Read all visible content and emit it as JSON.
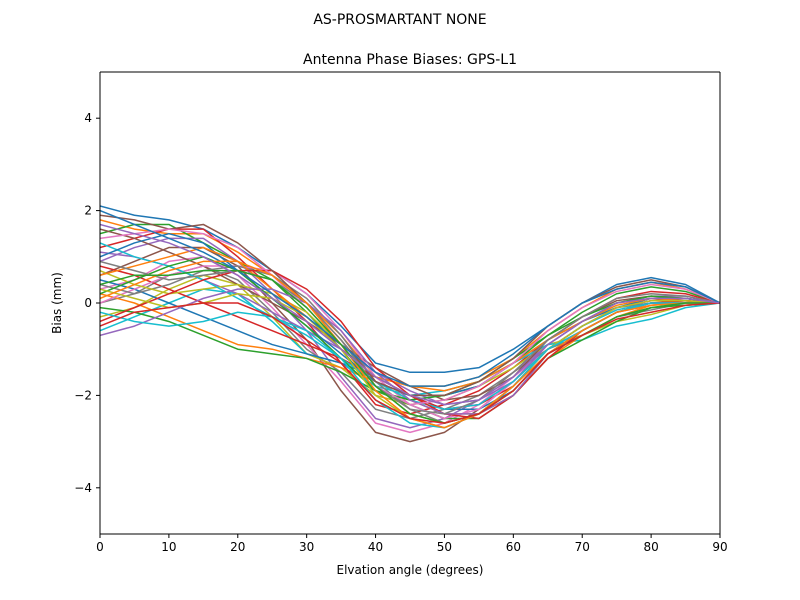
{
  "figure": {
    "suptitle": "AS-PROSMARTANT  NONE"
  },
  "chart_data": {
    "type": "line",
    "title": "Antenna Phase Biases: GPS-L1",
    "xlabel": "Elvation angle (degrees)",
    "ylabel": "Bias (mm)",
    "xlim": [
      0,
      90
    ],
    "ylim": [
      -5,
      5
    ],
    "xticks": [
      0,
      10,
      20,
      30,
      40,
      50,
      60,
      70,
      80,
      90
    ],
    "yticks": [
      -4,
      -2,
      0,
      2,
      4
    ],
    "ytick_labels": [
      "−4",
      "−2",
      "0",
      "2",
      "4"
    ],
    "grid": false,
    "legend": "none",
    "palette": [
      "#1f77b4",
      "#ff7f0e",
      "#2ca02c",
      "#d62728",
      "#9467bd",
      "#8c564b",
      "#e377c2",
      "#7f7f7f",
      "#bcbd22",
      "#17becf"
    ],
    "x": [
      0,
      5,
      10,
      15,
      20,
      25,
      30,
      35,
      40,
      45,
      50,
      55,
      60,
      65,
      70,
      75,
      80,
      85,
      90
    ],
    "series": [
      {
        "values": [
          2.1,
          1.9,
          1.8,
          1.6,
          1.2,
          0.7,
          0.2,
          -0.5,
          -1.3,
          -1.5,
          -1.5,
          -1.4,
          -1.0,
          -0.5,
          0.0,
          0.4,
          0.55,
          0.4,
          0.0
        ]
      },
      {
        "values": [
          1.8,
          1.6,
          1.5,
          1.5,
          1.1,
          0.6,
          0.0,
          -0.7,
          -1.6,
          -1.8,
          -1.8,
          -1.6,
          -1.2,
          -0.6,
          -0.1,
          0.3,
          0.45,
          0.3,
          0.0
        ]
      },
      {
        "values": [
          1.5,
          1.7,
          1.7,
          1.3,
          0.9,
          0.5,
          -0.2,
          -1.0,
          -1.9,
          -2.1,
          -2.0,
          -1.8,
          -1.3,
          -0.7,
          -0.2,
          0.2,
          0.35,
          0.25,
          0.0
        ]
      },
      {
        "values": [
          1.2,
          1.4,
          1.6,
          1.6,
          1.0,
          0.3,
          -0.4,
          -1.3,
          -2.2,
          -2.4,
          -2.2,
          -1.9,
          -1.4,
          -0.8,
          -0.3,
          0.1,
          0.25,
          0.2,
          0.0
        ]
      },
      {
        "values": [
          0.9,
          1.2,
          1.4,
          1.4,
          0.9,
          0.2,
          -0.6,
          -1.6,
          -2.5,
          -2.7,
          -2.5,
          -2.1,
          -1.5,
          -0.9,
          -0.4,
          0.0,
          0.15,
          0.15,
          0.0
        ]
      },
      {
        "values": [
          0.6,
          0.9,
          1.2,
          1.2,
          0.8,
          0.0,
          -0.8,
          -1.9,
          -2.8,
          -3.0,
          -2.8,
          -2.3,
          -1.7,
          -1.0,
          -0.5,
          -0.1,
          0.05,
          0.1,
          0.0
        ]
      },
      {
        "values": [
          0.3,
          0.5,
          0.9,
          1.0,
          0.6,
          -0.1,
          -0.9,
          -1.7,
          -2.6,
          -2.8,
          -2.6,
          -2.2,
          -1.6,
          -1.0,
          -0.6,
          -0.2,
          -0.05,
          0.05,
          0.0
        ]
      },
      {
        "values": [
          0.0,
          0.2,
          0.6,
          0.8,
          0.5,
          -0.2,
          -1.0,
          -1.5,
          -2.3,
          -2.5,
          -2.3,
          -2.0,
          -1.5,
          -1.0,
          -0.7,
          -0.3,
          -0.15,
          0.0,
          0.0
        ]
      },
      {
        "values": [
          -0.3,
          -0.1,
          0.3,
          0.6,
          0.4,
          -0.3,
          -1.1,
          -1.4,
          -2.0,
          -2.2,
          -2.1,
          -1.8,
          -1.4,
          -0.9,
          -0.7,
          -0.4,
          -0.25,
          -0.05,
          0.0
        ]
      },
      {
        "values": [
          -0.6,
          -0.3,
          0.0,
          0.3,
          0.2,
          -0.4,
          -1.1,
          -1.3,
          -1.8,
          -2.0,
          -1.9,
          -1.7,
          -1.3,
          -0.9,
          -0.8,
          -0.5,
          -0.35,
          -0.1,
          0.0
        ]
      },
      {
        "values": [
          0.5,
          0.3,
          0.0,
          -0.3,
          -0.6,
          -0.9,
          -1.1,
          -1.3,
          -1.6,
          -2.0,
          -2.3,
          -2.3,
          -1.9,
          -1.1,
          -0.6,
          -0.2,
          0.0,
          0.0,
          0.0
        ]
      },
      {
        "values": [
          0.2,
          0.0,
          -0.3,
          -0.6,
          -0.9,
          -1.0,
          -1.2,
          -1.4,
          -1.7,
          -2.1,
          -2.4,
          -2.4,
          -2.0,
          -1.2,
          -0.7,
          -0.3,
          -0.05,
          0.0,
          0.0
        ]
      },
      {
        "values": [
          -0.1,
          -0.2,
          -0.4,
          -0.7,
          -1.0,
          -1.1,
          -1.2,
          -1.5,
          -1.9,
          -2.2,
          -2.5,
          -2.5,
          -2.0,
          -1.2,
          -0.8,
          -0.4,
          -0.1,
          -0.05,
          0.0
        ]
      },
      {
        "values": [
          0.8,
          0.6,
          0.3,
          0.0,
          -0.3,
          -0.6,
          -0.9,
          -1.2,
          -1.6,
          -2.0,
          -2.3,
          -2.2,
          -1.8,
          -1.0,
          -0.5,
          -0.1,
          0.05,
          0.05,
          0.0
        ]
      },
      {
        "values": [
          1.1,
          1.0,
          0.8,
          0.5,
          0.2,
          -0.2,
          -0.6,
          -1.0,
          -1.5,
          -1.9,
          -2.2,
          -2.1,
          -1.7,
          -0.9,
          -0.4,
          0.0,
          0.1,
          0.1,
          0.0
        ]
      },
      {
        "values": [
          1.6,
          1.4,
          1.1,
          0.8,
          0.4,
          0.0,
          -0.4,
          -0.9,
          -1.4,
          -1.8,
          -2.1,
          -2.0,
          -1.6,
          -0.8,
          -0.3,
          0.05,
          0.15,
          0.1,
          0.0
        ]
      },
      {
        "values": [
          0.0,
          0.3,
          0.6,
          0.8,
          0.8,
          0.7,
          0.2,
          -0.6,
          -1.6,
          -2.2,
          -2.5,
          -2.3,
          -1.7,
          -1.0,
          -0.5,
          -0.1,
          0.05,
          0.05,
          0.0
        ]
      },
      {
        "values": [
          0.4,
          0.2,
          0.4,
          0.7,
          0.8,
          0.6,
          0.1,
          -0.7,
          -1.7,
          -2.3,
          -2.6,
          -2.4,
          -1.8,
          -1.0,
          -0.5,
          -0.1,
          0.0,
          0.0,
          0.0
        ]
      },
      {
        "values": [
          0.7,
          0.4,
          0.2,
          0.3,
          0.4,
          0.2,
          -0.2,
          -0.9,
          -1.8,
          -2.4,
          -2.6,
          -2.4,
          -1.9,
          -1.1,
          -0.6,
          -0.2,
          0.0,
          0.0,
          0.0
        ]
      },
      {
        "values": [
          1.3,
          1.0,
          0.8,
          0.5,
          0.1,
          -0.3,
          -0.7,
          -1.2,
          -1.7,
          -2.1,
          -2.3,
          -2.2,
          -1.7,
          -1.0,
          -0.5,
          -0.15,
          0.0,
          0.0,
          0.0
        ]
      },
      {
        "values": [
          1.0,
          1.3,
          1.5,
          1.3,
          0.7,
          0.1,
          -0.5,
          -1.1,
          -1.7,
          -2.0,
          -2.0,
          -1.8,
          -1.3,
          -0.8,
          -0.4,
          -0.1,
          0.1,
          0.1,
          0.0
        ]
      },
      {
        "values": [
          0.6,
          0.8,
          1.0,
          1.2,
          0.9,
          0.3,
          -0.3,
          -1.0,
          -1.6,
          -1.8,
          -1.9,
          -1.7,
          -1.3,
          -0.8,
          -0.4,
          -0.05,
          0.1,
          0.05,
          0.0
        ]
      },
      {
        "values": [
          0.2,
          0.5,
          0.8,
          1.0,
          0.7,
          0.1,
          -0.5,
          -1.2,
          -1.9,
          -2.1,
          -2.0,
          -1.7,
          -1.2,
          -0.7,
          -0.3,
          0.0,
          0.15,
          0.1,
          0.0
        ]
      },
      {
        "values": [
          -0.4,
          -0.1,
          0.2,
          0.5,
          0.7,
          0.7,
          0.3,
          -0.4,
          -1.4,
          -2.0,
          -2.4,
          -2.5,
          -2.0,
          -1.2,
          -0.6,
          -0.2,
          0.0,
          0.05,
          0.0
        ]
      },
      {
        "values": [
          -0.7,
          -0.5,
          -0.2,
          0.1,
          0.3,
          0.3,
          0.0,
          -0.6,
          -1.5,
          -2.1,
          -2.4,
          -2.4,
          -2.0,
          -1.1,
          -0.6,
          -0.2,
          0.0,
          0.0,
          0.0
        ]
      },
      {
        "values": [
          1.9,
          1.8,
          1.6,
          1.7,
          1.3,
          0.7,
          0.0,
          -0.8,
          -1.7,
          -2.0,
          -2.0,
          -1.7,
          -1.2,
          -0.5,
          0.0,
          0.35,
          0.5,
          0.35,
          0.0
        ]
      },
      {
        "values": [
          1.4,
          1.5,
          1.6,
          1.5,
          1.2,
          0.6,
          -0.1,
          -0.9,
          -1.8,
          -2.2,
          -2.1,
          -1.8,
          -1.3,
          -0.6,
          -0.1,
          0.25,
          0.4,
          0.3,
          0.0
        ]
      },
      {
        "values": [
          0.9,
          0.7,
          0.5,
          0.6,
          0.7,
          0.5,
          0.0,
          -0.8,
          -1.8,
          -2.3,
          -2.4,
          -2.1,
          -1.5,
          -0.8,
          -0.3,
          0.1,
          0.2,
          0.15,
          0.0
        ]
      },
      {
        "values": [
          0.3,
          0.1,
          -0.1,
          0.0,
          0.2,
          0.1,
          -0.3,
          -1.0,
          -2.0,
          -2.5,
          -2.7,
          -2.4,
          -1.8,
          -1.0,
          -0.5,
          -0.1,
          0.05,
          0.05,
          0.0
        ]
      },
      {
        "values": [
          -0.2,
          -0.4,
          -0.5,
          -0.4,
          -0.2,
          -0.3,
          -0.6,
          -1.2,
          -2.1,
          -2.6,
          -2.7,
          -2.4,
          -1.8,
          -1.0,
          -0.6,
          -0.2,
          0.0,
          0.0,
          0.0
        ]
      },
      {
        "values": [
          2.0,
          1.7,
          1.4,
          1.1,
          0.7,
          0.2,
          -0.3,
          -0.9,
          -1.5,
          -1.8,
          -1.8,
          -1.6,
          -1.1,
          -0.5,
          0.0,
          0.3,
          0.45,
          0.35,
          0.0
        ]
      },
      {
        "values": [
          0.1,
          0.4,
          0.7,
          0.9,
          0.9,
          0.6,
          0.0,
          -0.9,
          -1.9,
          -2.5,
          -2.7,
          -2.4,
          -1.8,
          -1.1,
          -0.6,
          -0.2,
          -0.05,
          0.0,
          0.0
        ]
      },
      {
        "values": [
          0.4,
          0.6,
          0.6,
          0.7,
          0.7,
          0.5,
          -0.1,
          -0.9,
          -1.8,
          -2.4,
          -2.6,
          -2.4,
          -1.9,
          -1.1,
          -0.7,
          -0.3,
          -0.1,
          0.0,
          0.0
        ]
      },
      {
        "values": [
          -0.5,
          -0.2,
          -0.1,
          0.0,
          0.0,
          -0.3,
          -0.8,
          -1.3,
          -2.1,
          -2.5,
          -2.6,
          -2.4,
          -1.9,
          -1.1,
          -0.7,
          -0.35,
          -0.2,
          -0.05,
          0.0
        ]
      },
      {
        "values": [
          1.7,
          1.5,
          1.3,
          1.0,
          0.6,
          0.1,
          -0.4,
          -1.0,
          -1.6,
          -2.0,
          -2.2,
          -2.1,
          -1.6,
          -0.9,
          -0.4,
          0.0,
          0.1,
          0.1,
          0.0
        ]
      }
    ]
  }
}
